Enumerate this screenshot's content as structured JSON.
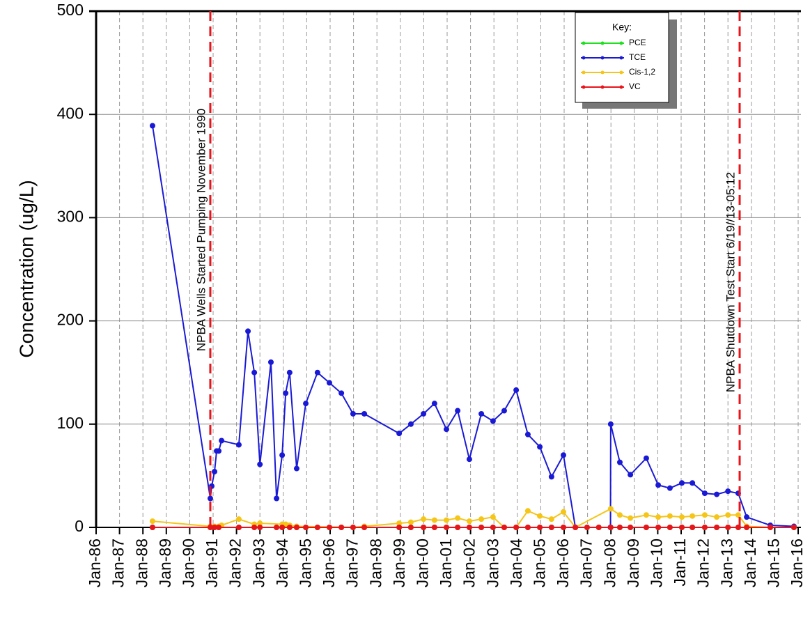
{
  "chart_data": {
    "type": "line",
    "ylabel": "Concentration (ug/L)",
    "xlim": [
      1986,
      2016
    ],
    "xticks": [
      {
        "value": 1986,
        "label": "Jan-86"
      },
      {
        "value": 1987,
        "label": "Jan-87"
      },
      {
        "value": 1988,
        "label": "Jan-88"
      },
      {
        "value": 1989,
        "label": "Jan-89"
      },
      {
        "value": 1990,
        "label": "Jan-90"
      },
      {
        "value": 1991,
        "label": "Jan-91"
      },
      {
        "value": 1992,
        "label": "Jan-92"
      },
      {
        "value": 1993,
        "label": "Jan-93"
      },
      {
        "value": 1994,
        "label": "Jan-94"
      },
      {
        "value": 1995,
        "label": "Jan-95"
      },
      {
        "value": 1996,
        "label": "Jan-96"
      },
      {
        "value": 1997,
        "label": "Jan-97"
      },
      {
        "value": 1998,
        "label": "Jan-98"
      },
      {
        "value": 1999,
        "label": "Jan-99"
      },
      {
        "value": 2000,
        "label": "Jan-00"
      },
      {
        "value": 2001,
        "label": "Jan-01"
      },
      {
        "value": 2002,
        "label": "Jan-02"
      },
      {
        "value": 2003,
        "label": "Jan-03"
      },
      {
        "value": 2004,
        "label": "Jan-04"
      },
      {
        "value": 2005,
        "label": "Jan-05"
      },
      {
        "value": 2006,
        "label": "Jan-06"
      },
      {
        "value": 2007,
        "label": "Jan-07"
      },
      {
        "value": 2008,
        "label": "Jan-08"
      },
      {
        "value": 2009,
        "label": "Jan-09"
      },
      {
        "value": 2010,
        "label": "Jan-10"
      },
      {
        "value": 2011,
        "label": "Jan-11"
      },
      {
        "value": 2012,
        "label": "Jan-12"
      },
      {
        "value": 2013,
        "label": "Jan-13"
      },
      {
        "value": 2014,
        "label": "Jan-14"
      },
      {
        "value": 2015,
        "label": "Jan-15"
      },
      {
        "value": 2016,
        "label": "Jan-16"
      }
    ],
    "ylim": [
      0,
      500
    ],
    "yticks": [
      0,
      100,
      200,
      300,
      400,
      500
    ],
    "grid": true,
    "legend_title": "Key:",
    "legend": "upper right",
    "annotations": [
      {
        "x": 1990.88,
        "label": "NPBA Wells Started Pumping November 1990",
        "color": "#e8141b"
      },
      {
        "x": 2013.5,
        "label": "NPBA Shutdown Test Start 6/19//13-05:12",
        "color": "#e8141b"
      }
    ],
    "series": [
      {
        "name": "PCE",
        "color": "#1fe01f",
        "x": [
          1988.41,
          1990.88,
          1991.06,
          1991.24,
          1992.1,
          1992.76,
          1993.0,
          1993.71,
          1993.95,
          1994.27,
          1994.57,
          1994.96,
          1995.46,
          1995.97,
          1996.48,
          1996.98,
          1997.46,
          1998.95,
          1999.45,
          1999.99,
          2000.46,
          2000.97,
          2001.45,
          2001.95,
          2002.46,
          2002.96,
          2003.44,
          2003.95,
          2004.45,
          2004.96,
          2005.46,
          2005.97,
          2006.48,
          2006.98,
          2007.48,
          2007.99,
          2008.38,
          2008.83,
          2009.51,
          2010.02,
          2010.52,
          2011.03,
          2011.48,
          2012.01,
          2012.52,
          2013.0,
          2013.44,
          2013.8,
          2014.81,
          2015.82
        ],
        "values": [
          0,
          0,
          0,
          0,
          0,
          0,
          0,
          0,
          0,
          0,
          0,
          0,
          0,
          0,
          0,
          0,
          0,
          0,
          0,
          0,
          0,
          0,
          0,
          0,
          0,
          0,
          0,
          0,
          0,
          0,
          0,
          0,
          0,
          0,
          0,
          0,
          0,
          0,
          0,
          0,
          0,
          0,
          0,
          0,
          0,
          0,
          0,
          0,
          0,
          0
        ]
      },
      {
        "name": "TCE",
        "color": "#1a1ad6",
        "x": [
          1988.41,
          1990.88,
          1990.94,
          1991.06,
          1991.15,
          1991.24,
          1991.36,
          1992.1,
          1992.49,
          1992.76,
          1993.0,
          1993.47,
          1993.71,
          1993.95,
          1994.1,
          1994.27,
          1994.57,
          1994.96,
          1995.46,
          1995.97,
          1996.48,
          1996.98,
          1997.46,
          1998.95,
          1999.45,
          1999.99,
          2000.46,
          2000.97,
          2001.45,
          2001.95,
          2002.46,
          2002.96,
          2003.44,
          2003.95,
          2004.45,
          2004.96,
          2005.46,
          2005.97,
          2006.48,
          2007.98,
          2007.99,
          2008.38,
          2008.83,
          2009.51,
          2010.02,
          2010.52,
          2011.03,
          2011.48,
          2012.01,
          2012.52,
          2013.0,
          2013.44,
          2013.8,
          2014.81,
          2015.82
        ],
        "values": [
          389,
          28,
          40,
          54,
          74,
          74,
          84,
          80,
          190,
          150,
          61,
          160,
          28,
          70,
          130,
          150,
          57,
          120,
          150,
          140,
          130,
          110,
          110,
          91,
          100,
          110,
          120,
          95,
          113,
          66,
          110,
          103,
          113,
          133,
          90,
          78,
          49,
          70,
          0,
          0,
          100,
          63,
          51,
          67,
          41,
          38,
          43,
          43,
          33,
          32,
          35,
          33,
          10,
          2,
          1
        ]
      },
      {
        "name": "Cis-1,2",
        "color": "#f5c518",
        "x": [
          1988.41,
          1990.88,
          1991.06,
          1991.24,
          1991.36,
          1992.1,
          1992.76,
          1993.0,
          1993.95,
          1994.1,
          1994.27,
          1994.57,
          1996.98,
          1997.46,
          1998.95,
          1999.45,
          1999.99,
          2000.46,
          2000.97,
          2001.45,
          2001.95,
          2002.46,
          2002.96,
          2003.44,
          2003.95,
          2004.45,
          2004.96,
          2005.46,
          2005.97,
          2006.48,
          2007.99,
          2008.38,
          2008.83,
          2009.51,
          2010.02,
          2010.52,
          2011.03,
          2011.48,
          2012.01,
          2012.52,
          2013.0,
          2013.44,
          2013.8,
          2014.81,
          2015.82
        ],
        "values": [
          6,
          1,
          1,
          1,
          2,
          8,
          3,
          4,
          3,
          3,
          2,
          1,
          0,
          1,
          4,
          5,
          8,
          7,
          7,
          9,
          6,
          8,
          10,
          0,
          0,
          16,
          11,
          8,
          15,
          0,
          18,
          12,
          9,
          12,
          10,
          11,
          10,
          11,
          12,
          10,
          12,
          12,
          1,
          0,
          0
        ]
      },
      {
        "name": "VC",
        "color": "#e8141b",
        "x": [
          1988.41,
          1990.88,
          1991.06,
          1991.24,
          1992.1,
          1992.76,
          1993.0,
          1993.71,
          1993.95,
          1994.27,
          1994.57,
          1994.96,
          1995.46,
          1995.97,
          1996.48,
          1996.98,
          1997.46,
          1998.95,
          1999.45,
          1999.99,
          2000.46,
          2000.97,
          2001.45,
          2001.95,
          2002.46,
          2002.96,
          2003.44,
          2003.95,
          2004.45,
          2004.96,
          2005.46,
          2005.97,
          2006.48,
          2006.98,
          2007.48,
          2007.99,
          2008.38,
          2008.83,
          2009.51,
          2010.02,
          2010.52,
          2011.03,
          2011.48,
          2012.01,
          2012.52,
          2013.0,
          2013.44,
          2013.8,
          2014.81,
          2015.82
        ],
        "values": [
          0,
          0,
          0,
          0,
          0,
          0,
          0,
          0,
          0,
          0,
          0,
          0,
          0,
          0,
          0,
          0,
          0,
          0,
          0,
          0,
          0,
          0,
          0,
          0,
          0,
          0,
          0,
          0,
          0,
          0,
          0,
          0,
          0,
          0,
          0,
          0,
          0,
          0,
          0,
          0,
          0,
          0,
          0,
          0,
          0,
          0,
          0,
          0,
          0,
          0
        ]
      }
    ]
  }
}
